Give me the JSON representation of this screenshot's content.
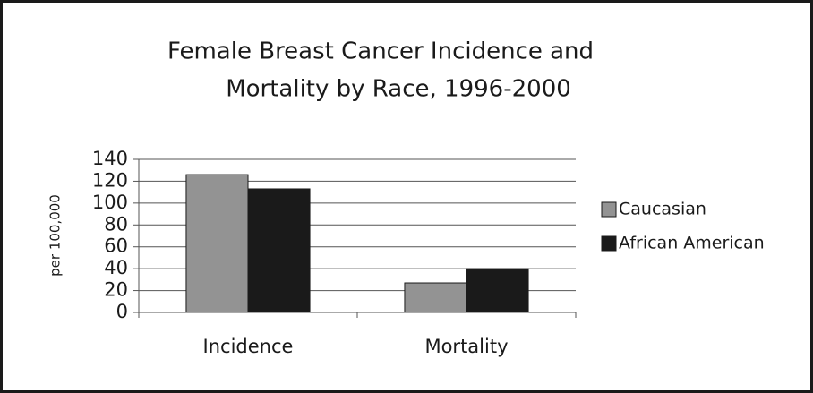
{
  "chart_data": {
    "type": "bar",
    "title": [
      "Female Breast Cancer Incidence and",
      "Mortality by Race, 1996-2000"
    ],
    "y_label": "per 100,000",
    "categories": [
      "Incidence",
      "Mortality"
    ],
    "series": [
      {
        "name": "Caucasian",
        "color": "#939393",
        "values": [
          126,
          27
        ]
      },
      {
        "name": "African American",
        "color": "#1a1a1a",
        "values": [
          113,
          40
        ]
      }
    ],
    "ylim": [
      0,
      140
    ],
    "yticks": [
      0,
      20,
      40,
      60,
      80,
      100,
      120,
      140
    ],
    "grid": true,
    "legend": "right"
  }
}
